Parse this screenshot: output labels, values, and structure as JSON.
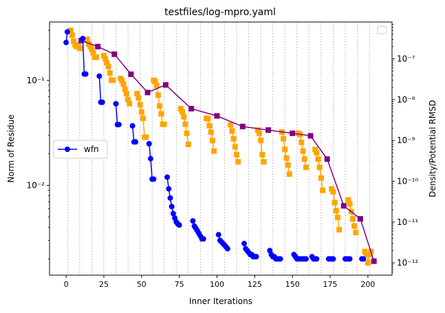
{
  "chart_data": {
    "type": "line",
    "title": "testfiles/log-mpro.yaml",
    "xlabel": "Inner Iterations",
    "ylabel_left": "Norm of Residue",
    "ylabel_right": "Density/Potential RMSD",
    "xlim": [
      -11,
      216
    ],
    "xticks": [
      0,
      25,
      50,
      75,
      100,
      125,
      150,
      175,
      200
    ],
    "y_left_scale": "log",
    "y_left_lim": [
      0.0014,
      0.36
    ],
    "y_left_ticks": [
      {
        "value": 0.01,
        "label": "10⁻²"
      },
      {
        "value": 0.1,
        "label": "10⁻¹"
      }
    ],
    "y_right_scale": "log",
    "y_right_lim": [
      5e-13,
      8e-07
    ],
    "y_right_ticks": [
      {
        "value": 1e-12,
        "label": "10⁻¹²"
      },
      {
        "value": 1e-11,
        "label": "10⁻¹¹"
      },
      {
        "value": 1e-10,
        "label": "10⁻¹⁰"
      },
      {
        "value": 1e-09,
        "label": "10⁻⁹"
      },
      {
        "value": 1e-08,
        "label": "10⁻⁸"
      },
      {
        "value": 1e-07,
        "label": "10⁻⁷"
      }
    ],
    "vertical_gridlines": [
      1,
      9,
      17,
      25,
      33,
      41,
      49,
      57,
      65,
      73,
      81,
      89,
      97,
      105,
      113,
      121,
      129,
      137,
      145,
      153,
      161,
      169,
      177,
      185,
      193,
      201
    ],
    "legend_left": {
      "position": "center-left",
      "entries": [
        "wfn"
      ]
    },
    "legend_right": {
      "position": "top-right",
      "entries": []
    },
    "series": [
      {
        "name": "wfn",
        "axis": "left",
        "color": "#0000ff",
        "marker": "circle",
        "segments": [
          {
            "x": [
              0,
              0.8
            ],
            "y": [
              0.23,
              0.29
            ]
          },
          {
            "x": [
              11,
              12,
              13
            ],
            "y": [
              0.25,
              0.115,
              0.115
            ]
          },
          {
            "x": [
              22,
              23,
              24
            ],
            "y": [
              0.11,
              0.062,
              0.062
            ]
          },
          {
            "x": [
              33,
              34,
              35
            ],
            "y": [
              0.06,
              0.038,
              0.038
            ]
          },
          {
            "x": [
              44,
              45,
              46
            ],
            "y": [
              0.037,
              0.026,
              0.026
            ]
          },
          {
            "x": [
              55,
              56,
              57,
              58
            ],
            "y": [
              0.025,
              0.018,
              0.0115,
              0.0115
            ]
          },
          {
            "x": [
              67,
              68,
              69,
              70,
              71,
              72,
              73,
              74,
              75
            ],
            "y": [
              0.012,
              0.0093,
              0.0076,
              0.0063,
              0.0054,
              0.0049,
              0.0045,
              0.0043,
              0.0042
            ]
          },
          {
            "x": [
              84,
              85,
              86,
              87,
              88,
              89,
              90,
              91
            ],
            "y": [
              0.0046,
              0.0041,
              0.0039,
              0.0037,
              0.0035,
              0.0033,
              0.0031,
              0.0031
            ]
          },
          {
            "x": [
              101,
              102,
              103,
              104,
              105,
              106,
              107
            ],
            "y": [
              0.0034,
              0.003,
              0.0029,
              0.0028,
              0.0027,
              0.0026,
              0.0025
            ]
          },
          {
            "x": [
              118,
              119,
              120,
              121,
              122,
              123,
              124,
              125,
              126
            ],
            "y": [
              0.0028,
              0.0025,
              0.0024,
              0.0023,
              0.0022,
              0.0022,
              0.0021,
              0.0021,
              0.0021
            ]
          },
          {
            "x": [
              135,
              136,
              137,
              138,
              139,
              140,
              141,
              142
            ],
            "y": [
              0.0024,
              0.0022,
              0.0021,
              0.0021,
              0.002,
              0.002,
              0.002,
              0.002
            ]
          },
          {
            "x": [
              151,
              152,
              153,
              154,
              155,
              156,
              157,
              158,
              159
            ],
            "y": [
              0.0022,
              0.0021,
              0.002,
              0.002,
              0.002,
              0.002,
              0.002,
              0.002,
              0.002
            ]
          },
          {
            "x": [
              163,
              164,
              165,
              166
            ],
            "y": [
              0.0021,
              0.002,
              0.002,
              0.002
            ]
          },
          {
            "x": [
              174,
              175,
              176,
              177
            ],
            "y": [
              0.002,
              0.002,
              0.002,
              0.002
            ]
          },
          {
            "x": [
              185,
              186,
              187,
              188
            ],
            "y": [
              0.002,
              0.002,
              0.002,
              0.002
            ]
          },
          {
            "x": [
              196,
              197
            ],
            "y": [
              0.002,
              0.002
            ]
          }
        ]
      },
      {
        "name": "",
        "axis": "right",
        "color": "#ffa500",
        "marker": "square",
        "segments": [
          {
            "x": [
              3,
              4,
              5,
              6,
              7,
              8,
              9
            ],
            "y": [
              5e-07,
              3.8e-07,
              2.7e-07,
              2.2e-07,
              2e-07,
              2.1e-07,
              1.8e-07
            ]
          },
          {
            "x": [
              14,
              15,
              16,
              17,
              18,
              19,
              20
            ],
            "y": [
              3e-07,
              2.3e-07,
              2e-07,
              1.7e-07,
              1.4e-07,
              1.1e-07,
              1.1e-07
            ]
          },
          {
            "x": [
              25,
              26,
              27,
              28,
              29,
              30,
              31
            ],
            "y": [
              1.2e-07,
              1e-07,
              8e-08,
              6.5e-08,
              4.5e-08,
              3e-08,
              3e-08
            ]
          },
          {
            "x": [
              36,
              37,
              38,
              39,
              40,
              41,
              42
            ],
            "y": [
              3.3e-08,
              2.9e-08,
              2.4e-08,
              1.8e-08,
              1.4e-08,
              1e-08,
              8e-09
            ]
          },
          {
            "x": [
              47,
              48,
              49,
              50,
              51,
              52,
              53
            ],
            "y": [
              1.4e-08,
              1.1e-08,
              7.5e-09,
              5e-09,
              3.5e-09,
              1.2e-09,
              1.2e-09
            ]
          },
          {
            "x": [
              58,
              59,
              60,
              61,
              62,
              63,
              64,
              65
            ],
            "y": [
              3e-08,
              2.8e-08,
              2.2e-08,
              1.3e-08,
              7e-09,
              4.5e-09,
              2.5e-09,
              2.5e-09
            ]
          },
          {
            "x": [
              76,
              77,
              78,
              79,
              80,
              81
            ],
            "y": [
              6e-09,
              5e-09,
              3.8e-09,
              2.5e-09,
              1.5e-09,
              8e-10
            ]
          },
          {
            "x": [
              93,
              94,
              95,
              96,
              97,
              98
            ],
            "y": [
              3.5e-09,
              3.4e-09,
              2.3e-09,
              1.6e-09,
              1e-09,
              5.5e-10
            ]
          },
          {
            "x": [
              109,
              110,
              111,
              112,
              113,
              114
            ],
            "y": [
              2.4e-09,
              1.7e-09,
              1.1e-09,
              7e-10,
              4.5e-10,
              3e-10
            ]
          },
          {
            "x": [
              127,
              128,
              129,
              130,
              131
            ],
            "y": [
              1.8e-09,
              1.5e-09,
              1e-09,
              4.5e-10,
              3e-10
            ]
          },
          {
            "x": [
              143,
              144,
              145,
              146,
              147,
              148
            ],
            "y": [
              1.6e-09,
              1.1e-09,
              6e-10,
              3.7e-10,
              2.5e-10,
              1.5e-10
            ]
          },
          {
            "x": [
              154,
              155,
              156,
              157,
              158,
              159
            ],
            "y": [
              1.5e-09,
              1.4e-09,
              9e-10,
              5.5e-10,
              3.5e-10,
              2.2e-10
            ]
          },
          {
            "x": [
              165,
              166,
              167,
              168,
              169,
              170
            ],
            "y": [
              6e-10,
              5e-10,
              3.5e-10,
              2.2e-10,
              1.2e-10,
              6e-11
            ]
          },
          {
            "x": [
              176,
              177,
              178,
              179,
              180,
              181
            ],
            "y": [
              6.5e-11,
              5.5e-11,
              3e-11,
              1.9e-11,
              1.3e-11,
              6.5e-12
            ]
          },
          {
            "x": [
              187,
              188,
              189,
              190,
              191,
              192
            ],
            "y": [
              3.5e-11,
              2.8e-11,
              1.8e-11,
              1.2e-11,
              8e-12,
              5.5e-12
            ]
          },
          {
            "x": [
              198,
              199,
              200,
              201,
              202
            ],
            "y": [
              1.9e-12,
              1.6e-12,
              1e-12,
              1.6e-12,
              1.9e-12
            ]
          }
        ]
      },
      {
        "name": "",
        "axis": "right",
        "color": "#800080",
        "marker": "square",
        "segments": [
          {
            "x": [
              10,
              21,
              32,
              43,
              54,
              66,
              83,
              100,
              117,
              134,
              150,
              162,
              173,
              184,
              195,
              204
            ],
            "y": [
              2.8e-07,
              2e-07,
              1.3e-07,
              4.2e-08,
              1.5e-08,
              2.3e-08,
              6e-09,
              4e-09,
              2.2e-09,
              1.8e-09,
              1.5e-09,
              1.3e-09,
              3.5e-10,
              2.5e-11,
              1.2e-11,
              1.1e-12
            ]
          }
        ]
      }
    ]
  }
}
